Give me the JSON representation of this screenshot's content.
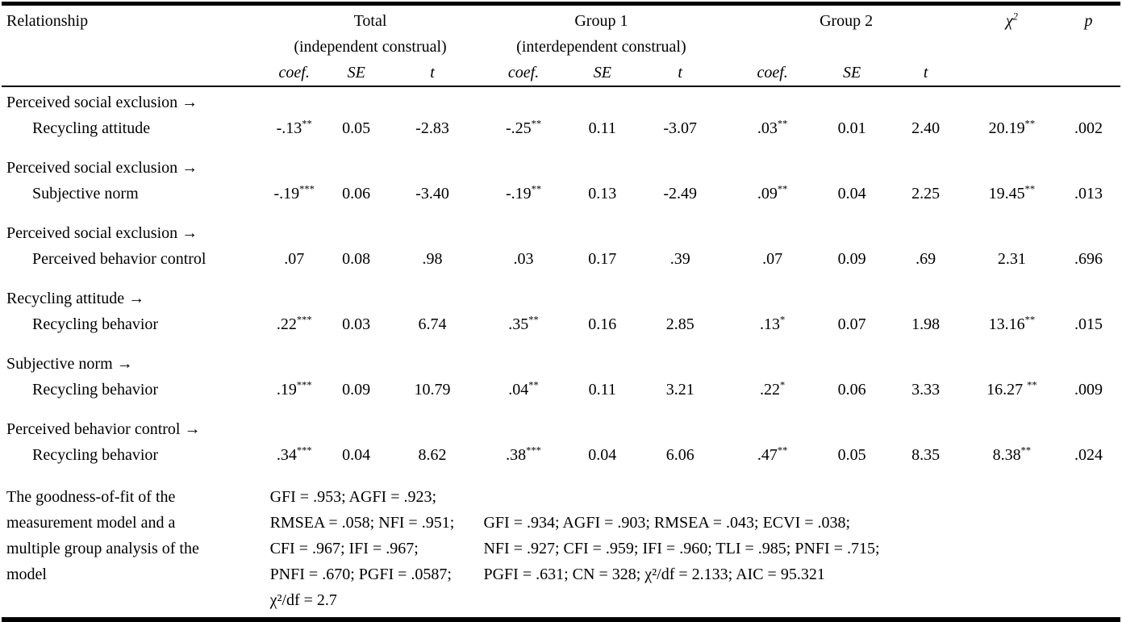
{
  "colors": {
    "text": "#000000",
    "background": "#ffffff",
    "rule": "#000000"
  },
  "table": {
    "title_col": "Relationship",
    "groups": [
      {
        "name": "Total",
        "subtitle": "(independent construal)"
      },
      {
        "name": "Group 1",
        "subtitle": "(interdependent construal)"
      },
      {
        "name": "Group 2",
        "subtitle": ""
      }
    ],
    "stat_headers": {
      "coef": "coef.",
      "se": "SE",
      "t": "t"
    },
    "chi_header": {
      "symbol": "χ",
      "exp": "2"
    },
    "p_header": "p",
    "rows": [
      {
        "from": "Perceived social exclusion →",
        "to": "Recycling attitude",
        "total": [
          "-.13**",
          "0.05",
          "-2.83"
        ],
        "group1": [
          "-.25**",
          "0.11",
          "-3.07"
        ],
        "group2": [
          ".03**",
          "0.01",
          "2.40"
        ],
        "chi2": "20.19**",
        "p": ".002"
      },
      {
        "from": "Perceived social exclusion →",
        "to": "Subjective norm",
        "total": [
          "-.19***",
          "0.06",
          "-3.40"
        ],
        "group1": [
          "-.19**",
          "0.13",
          "-2.49"
        ],
        "group2": [
          ".09**",
          "0.04",
          "2.25"
        ],
        "chi2": "19.45**",
        "p": ".013"
      },
      {
        "from": "Perceived social exclusion →",
        "to": "Perceived behavior control",
        "total": [
          ".07",
          "0.08",
          ".98"
        ],
        "group1": [
          ".03",
          "0.17",
          ".39"
        ],
        "group2": [
          ".07",
          "0.09",
          ".69"
        ],
        "chi2": "2.31",
        "p": ".696"
      },
      {
        "from": "Recycling attitude →",
        "to": "Recycling behavior",
        "total": [
          ".22***",
          "0.03",
          "6.74"
        ],
        "group1": [
          ".35**",
          "0.16",
          "2.85"
        ],
        "group2": [
          ".13*",
          "0.07",
          "1.98"
        ],
        "chi2": "13.16**",
        "p": ".015"
      },
      {
        "from": "Subjective norm →",
        "to": "Recycling behavior",
        "total": [
          ".19***",
          "0.09",
          "10.79"
        ],
        "group1": [
          ".04**",
          "0.11",
          "3.21"
        ],
        "group2": [
          ".22*",
          "0.06",
          "3.33"
        ],
        "chi2": "16.27 **",
        "p": ".009"
      },
      {
        "from": "Perceived behavior control →",
        "to": "Recycling behavior",
        "total": [
          ".34***",
          "0.04",
          "8.62"
        ],
        "group1": [
          ".38***",
          "0.04",
          "6.06"
        ],
        "group2": [
          ".47**",
          "0.05",
          "8.35"
        ],
        "chi2": "8.38**",
        "p": ".024"
      }
    ],
    "footer": {
      "label_lines": [
        "The goodness-of-fit of the",
        "measurement model and a",
        "multiple group analysis of the",
        "model"
      ],
      "total_fit_lines": [
        "GFI = .953; AGFI = .923;",
        "RMSEA = .058; NFI = .951;",
        "CFI = .967; IFI = .967;",
        "PNFI = .670; PGFI = .0587;",
        "χ²/df = 2.7"
      ],
      "group_fit_lines": [
        "GFI = .934; AGFI = .903; RMSEA = .043; ECVI = .038;",
        "NFI = .927; CFI = .959; IFI = .960; TLI = .985; PNFI = .715;",
        "PGFI = .631; CN = 328; χ²/df = 2.133; AIC = 95.321"
      ]
    }
  }
}
